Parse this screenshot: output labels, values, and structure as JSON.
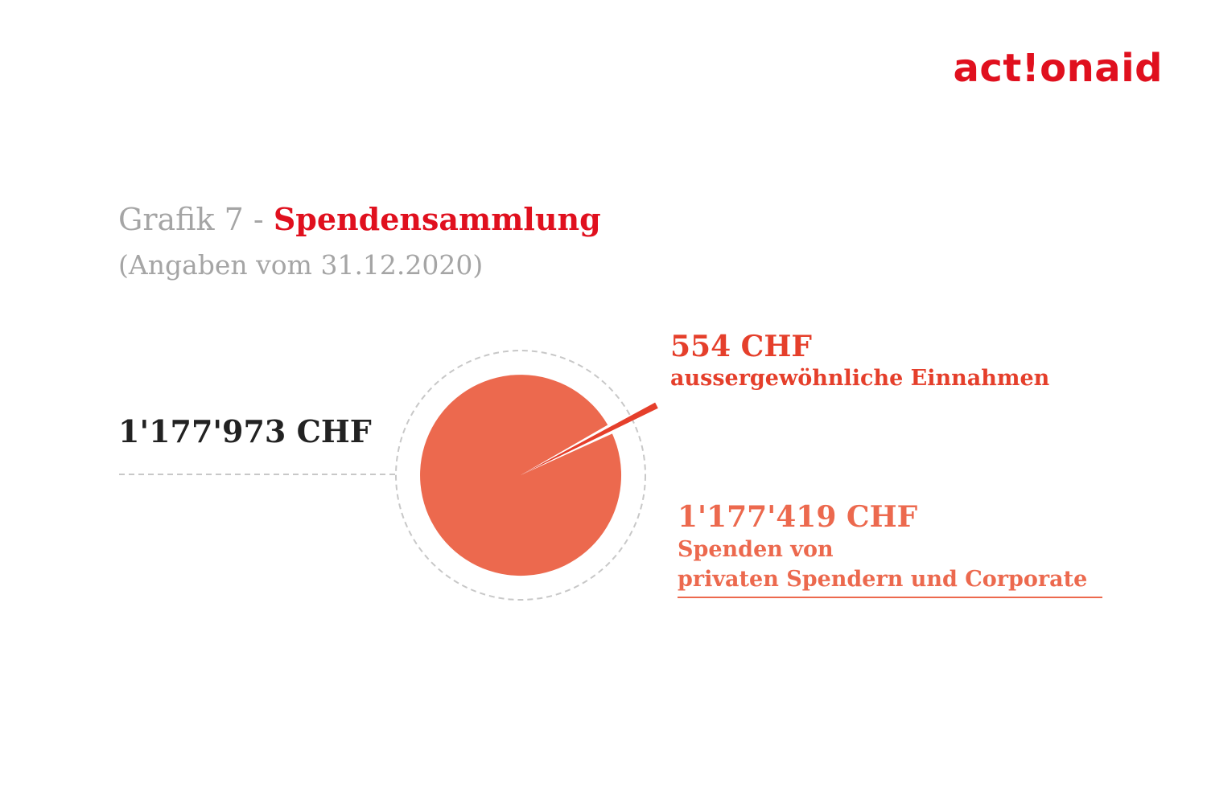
{
  "logo": {
    "text": "act!onaid"
  },
  "title": {
    "prefix": "Grafik 7 - ",
    "main": "Spendensammlung"
  },
  "subtitle": "(Angaben vom 31.12.2020)",
  "colors": {
    "brand_red": "#e0101e",
    "slice_small": "#e53f2b",
    "slice_large": "#ec694e",
    "total_text": "#222222",
    "muted_text": "#a5a5a5",
    "guide_line": "#c8c8c8"
  },
  "chart_data": {
    "type": "pie",
    "title": "Spendensammlung",
    "total": {
      "label": "1'177'973 CHF",
      "value": 1177973
    },
    "slices": [
      {
        "value": 554,
        "value_label": "554 CHF",
        "label": "aussergewöhnliche Einnahmen",
        "color": "#e53f2b",
        "exploded": true
      },
      {
        "value": 1177419,
        "value_label": "1'177'419 CHF",
        "label_lines": [
          "Spenden von",
          "privaten Spendern und Corporate"
        ],
        "color": "#ec694e",
        "exploded": false
      }
    ]
  }
}
